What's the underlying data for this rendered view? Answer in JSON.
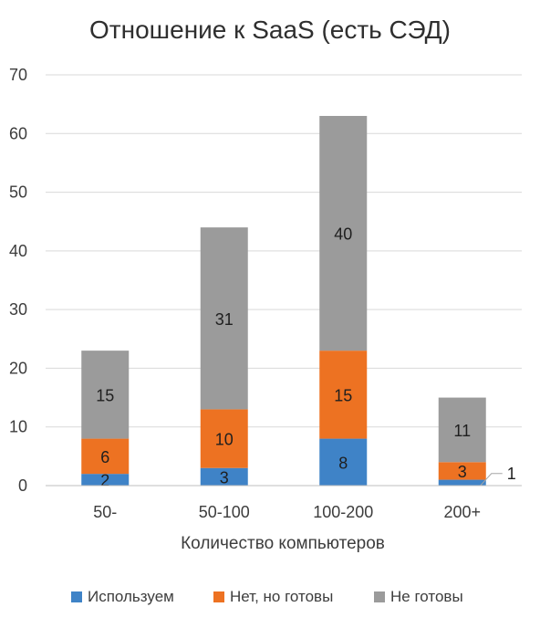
{
  "chart_data": {
    "type": "bar",
    "stacked": true,
    "title": "Отношение к SaaS (есть СЭД)",
    "xlabel": "Количество компьютеров",
    "ylabel": "",
    "categories": [
      "50-",
      "50-100",
      "100-200",
      "200+"
    ],
    "ylim": [
      0,
      70
    ],
    "yticks": [
      0,
      10,
      20,
      30,
      40,
      50,
      60,
      70
    ],
    "grid": true,
    "legend_position": "bottom",
    "series": [
      {
        "name": "Используем",
        "values": [
          2,
          3,
          8,
          1
        ],
        "color": "#3f83c7"
      },
      {
        "name": "Нет, но готовы",
        "values": [
          6,
          10,
          15,
          3
        ],
        "color": "#ed7222"
      },
      {
        "name": "Не готовы",
        "values": [
          15,
          31,
          40,
          11
        ],
        "color": "#9b9b9b"
      }
    ]
  }
}
